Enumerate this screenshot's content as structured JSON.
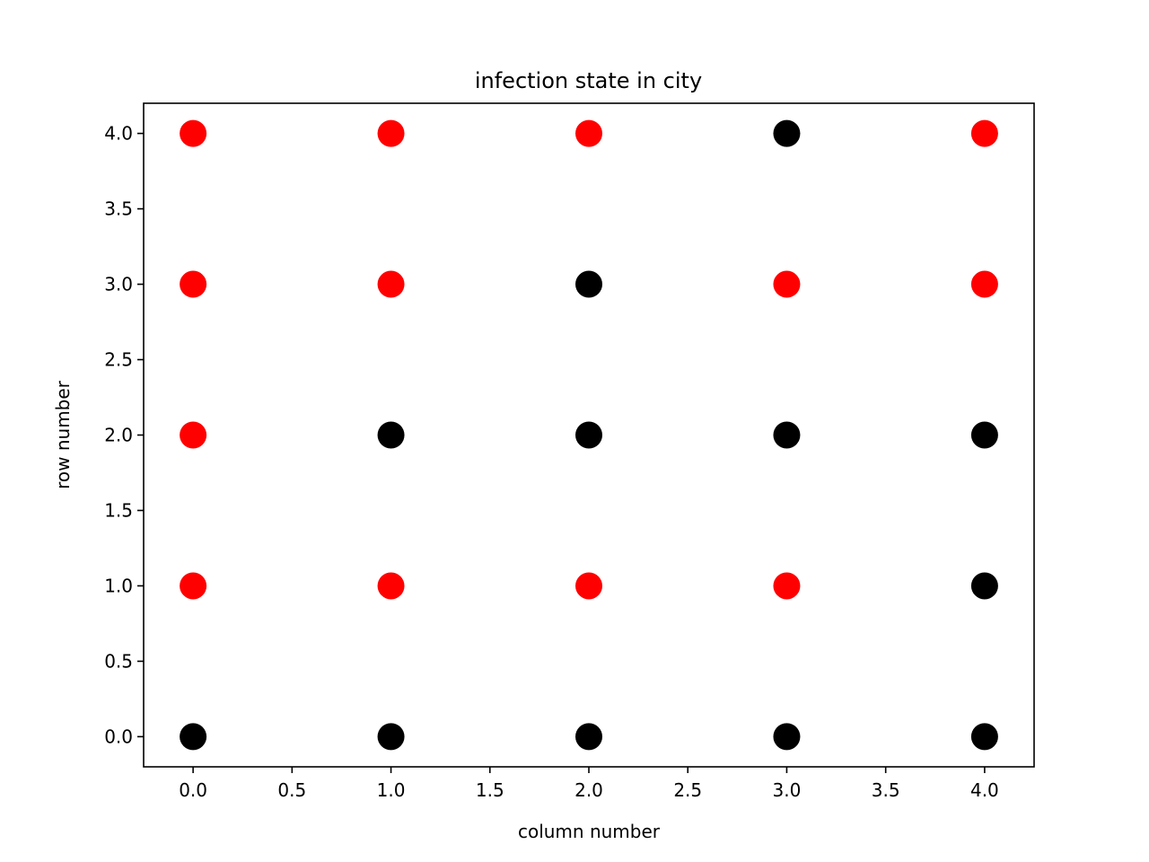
{
  "chart_data": {
    "type": "scatter",
    "title": "infection state in city",
    "xlabel": "column number",
    "ylabel": "row number",
    "xlim": [
      -0.25,
      4.25
    ],
    "ylim": [
      -0.2,
      4.2
    ],
    "x_ticks": [
      "0.0",
      "0.5",
      "1.0",
      "1.5",
      "2.0",
      "2.5",
      "3.0",
      "3.5",
      "4.0"
    ],
    "y_ticks": [
      "0.0",
      "0.5",
      "1.0",
      "1.5",
      "2.0",
      "2.5",
      "3.0",
      "3.5",
      "4.0"
    ],
    "grid": false,
    "legend": "none",
    "colors": {
      "infected": "#ff0000",
      "not_infected": "#000000"
    },
    "points": [
      {
        "x": 0,
        "y": 0,
        "color": "#000000"
      },
      {
        "x": 1,
        "y": 0,
        "color": "#000000"
      },
      {
        "x": 2,
        "y": 0,
        "color": "#000000"
      },
      {
        "x": 3,
        "y": 0,
        "color": "#000000"
      },
      {
        "x": 4,
        "y": 0,
        "color": "#000000"
      },
      {
        "x": 0,
        "y": 1,
        "color": "#ff0000"
      },
      {
        "x": 1,
        "y": 1,
        "color": "#ff0000"
      },
      {
        "x": 2,
        "y": 1,
        "color": "#ff0000"
      },
      {
        "x": 3,
        "y": 1,
        "color": "#ff0000"
      },
      {
        "x": 4,
        "y": 1,
        "color": "#000000"
      },
      {
        "x": 0,
        "y": 2,
        "color": "#ff0000"
      },
      {
        "x": 1,
        "y": 2,
        "color": "#000000"
      },
      {
        "x": 2,
        "y": 2,
        "color": "#000000"
      },
      {
        "x": 3,
        "y": 2,
        "color": "#000000"
      },
      {
        "x": 4,
        "y": 2,
        "color": "#000000"
      },
      {
        "x": 0,
        "y": 3,
        "color": "#ff0000"
      },
      {
        "x": 1,
        "y": 3,
        "color": "#ff0000"
      },
      {
        "x": 2,
        "y": 3,
        "color": "#000000"
      },
      {
        "x": 3,
        "y": 3,
        "color": "#ff0000"
      },
      {
        "x": 4,
        "y": 3,
        "color": "#ff0000"
      },
      {
        "x": 0,
        "y": 4,
        "color": "#ff0000"
      },
      {
        "x": 1,
        "y": 4,
        "color": "#ff0000"
      },
      {
        "x": 2,
        "y": 4,
        "color": "#ff0000"
      },
      {
        "x": 3,
        "y": 4,
        "color": "#000000"
      },
      {
        "x": 4,
        "y": 4,
        "color": "#ff0000"
      }
    ]
  }
}
